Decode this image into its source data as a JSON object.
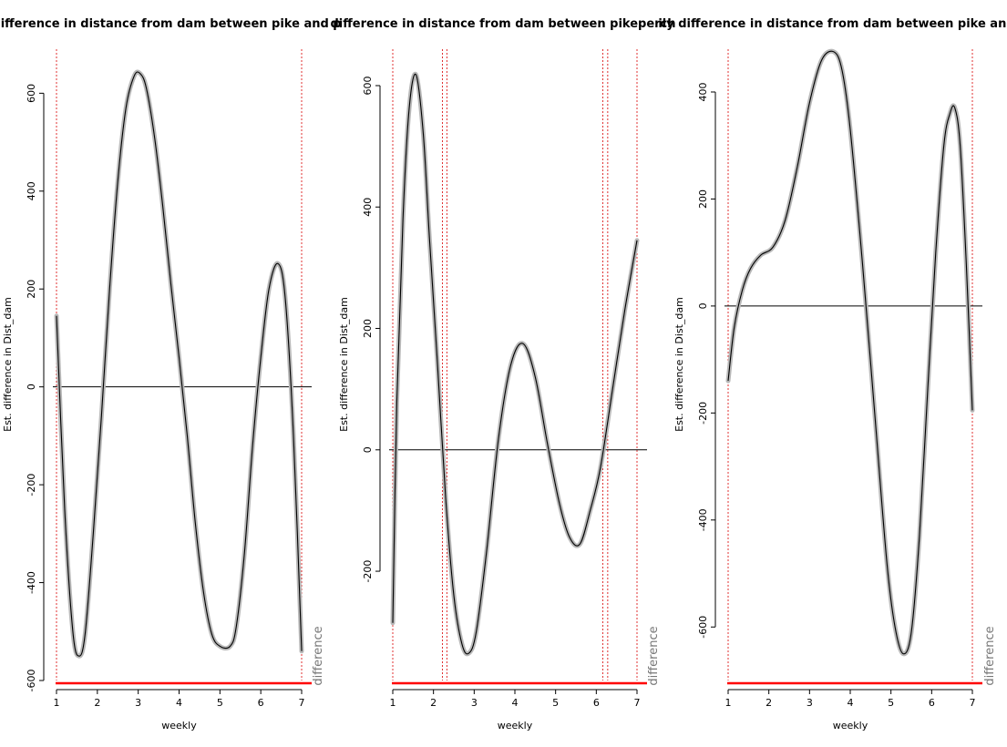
{
  "chart_data": [
    {
      "type": "line",
      "title": "difference in distance from dam between pike and p",
      "xlabel": "weekly",
      "ylabel": "Est. difference in Dist_dam",
      "side_label": "difference",
      "xlim": [
        1,
        7
      ],
      "ylim": [
        -600,
        690
      ],
      "xticks": [
        1,
        2,
        3,
        4,
        5,
        6,
        7
      ],
      "yticks": [
        -600,
        -400,
        -200,
        0,
        200,
        400,
        600
      ],
      "vlines": [
        1,
        7
      ],
      "series": [
        {
          "x": [
            1.0,
            1.2,
            1.4,
            1.55,
            1.7,
            1.9,
            2.1,
            2.3,
            2.5,
            2.7,
            2.9,
            3.05,
            3.2,
            3.4,
            3.6,
            3.8,
            4.0,
            4.2,
            4.4,
            4.6,
            4.8,
            5.0,
            5.25,
            5.4,
            5.6,
            5.8,
            6.0,
            6.2,
            6.42,
            6.6,
            6.8,
            7.0
          ],
          "y": [
            145,
            -250,
            -500,
            -550,
            -505,
            -300,
            -60,
            200,
            420,
            570,
            635,
            640,
            610,
            510,
            370,
            210,
            60,
            -100,
            -280,
            -420,
            -505,
            -530,
            -530,
            -490,
            -340,
            -120,
            60,
            200,
            252,
            180,
            -100,
            -540
          ]
        }
      ]
    },
    {
      "type": "line",
      "title": "difference in distance from dam between pikeperch",
      "xlabel": "weekly",
      "ylabel": "Est. difference in Dist_dam",
      "side_label": "difference",
      "xlim": [
        1,
        7
      ],
      "ylim": [
        -380,
        660
      ],
      "xticks": [
        1,
        2,
        3,
        4,
        5,
        6,
        7
      ],
      "yticks": [
        -200,
        0,
        200,
        400,
        600
      ],
      "vlines": [
        1,
        2.22,
        2.33,
        6.16,
        6.28,
        7
      ],
      "series": [
        {
          "x": [
            1.0,
            1.1,
            1.25,
            1.4,
            1.57,
            1.75,
            1.9,
            2.1,
            2.3,
            2.5,
            2.7,
            2.87,
            3.05,
            3.3,
            3.6,
            3.9,
            4.2,
            4.5,
            4.8,
            5.1,
            5.35,
            5.6,
            5.85,
            6.1,
            6.4,
            6.7,
            7.0
          ],
          "y": [
            -285,
            80,
            380,
            560,
            618,
            520,
            350,
            140,
            -80,
            -240,
            -320,
            -335,
            -300,
            -170,
            20,
            140,
            175,
            120,
            10,
            -90,
            -145,
            -155,
            -100,
            -30,
            100,
            230,
            345
          ]
        }
      ]
    },
    {
      "type": "line",
      "title": "ily difference in distance from dam between pike and",
      "xlabel": "weekly",
      "ylabel": "Est. difference in Dist_dam",
      "side_label": "difference",
      "xlim": [
        1,
        7
      ],
      "ylim": [
        -700,
        480
      ],
      "xticks": [
        1,
        2,
        3,
        4,
        5,
        6,
        7
      ],
      "yticks": [
        -600,
        -400,
        -200,
        0,
        200,
        400
      ],
      "vlines": [
        1,
        7
      ],
      "series": [
        {
          "x": [
            1.0,
            1.15,
            1.35,
            1.55,
            1.8,
            2.1,
            2.4,
            2.7,
            3.0,
            3.3,
            3.6,
            3.8,
            4.0,
            4.3,
            4.6,
            4.9,
            5.1,
            5.3,
            5.5,
            5.7,
            5.9,
            6.1,
            6.3,
            6.45,
            6.57,
            6.7,
            6.85,
            7.0
          ],
          "y": [
            -140,
            -40,
            30,
            70,
            95,
            110,
            160,
            260,
            380,
            460,
            475,
            440,
            330,
            80,
            -200,
            -480,
            -600,
            -650,
            -610,
            -430,
            -160,
            100,
            300,
            360,
            370,
            300,
            80,
            -195
          ]
        }
      ]
    }
  ]
}
